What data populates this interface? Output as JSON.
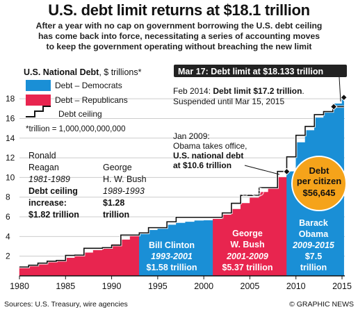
{
  "header": {
    "title": "U.S. debt limit returns at $18.1 trillion",
    "subtitle_lines": [
      "After a year with no cap on government borrowing the U.S. debt ceiling",
      "has come back into force, necessitating a series of accounting moves",
      "to keep the government operating without breaching the new limit"
    ]
  },
  "chart_title": {
    "main": "U.S. National Debt",
    "unit": ", $ trillions*"
  },
  "legend": {
    "democrats": "Debt – Democrats",
    "republicans": "Debt – Republicans",
    "ceiling": "Debt ceiling",
    "footnote": "*trillion = 1,000,000,000,000"
  },
  "colors": {
    "democrats": "#1a8fd6",
    "republicans": "#e8254f",
    "ceiling": "#111111",
    "gridline": "#cccccc",
    "citizen_badge": "#f5a31a",
    "callout_bg": "#222222"
  },
  "callouts": {
    "mar17": "Mar 17: Debt limit at $18.133 trillion",
    "feb2014_prefix": "Feb 2014: ",
    "feb2014_bold": "Debt limit $17.2 trillion",
    "feb2014_suffix": ".",
    "feb2014_line2": "Suspended until Mar 15, 2015",
    "jan2009_line1": "Jan 2009:",
    "jan2009_line2": "Obama takes office,",
    "jan2009_bold1": "U.S. national debt",
    "jan2009_bold2": "at $10.6 trillion"
  },
  "presidents": [
    {
      "name_lines": [
        "Ronald",
        "Reagan"
      ],
      "years": "1981-1989",
      "increase_lines": [
        "Debt ceiling",
        "increase:",
        "$1.82 trillion"
      ]
    },
    {
      "name_lines": [
        "George",
        "H. W. Bush"
      ],
      "years": "1989-1993",
      "increase_lines": [
        "$1.28",
        "trillion"
      ]
    },
    {
      "name_lines": [
        "Bill Clinton"
      ],
      "years": "1993-2001",
      "increase_lines": [
        "$1.58 trillion"
      ]
    },
    {
      "name_lines": [
        "George",
        "W. Bush"
      ],
      "years": "2001-2009",
      "increase_lines": [
        "$5.37 trillion"
      ]
    },
    {
      "name_lines": [
        "Barack",
        "Obama"
      ],
      "years": "2009-2015",
      "increase_lines": [
        "$7.5",
        "trillion"
      ]
    }
  ],
  "citizen_badge": {
    "line1": "Debt",
    "line2": "per citizen",
    "value": "$56,645"
  },
  "watermark": "GRAPHIC NEWS",
  "footer": {
    "sources": "Sources: U.S. Treasury, wire agencies",
    "credit": "© GRAPHIC NEWS"
  },
  "chart_data": {
    "type": "area",
    "xlim": [
      1980,
      2015.3
    ],
    "ylim": [
      0,
      19
    ],
    "x_ticks": [
      1980,
      1985,
      1990,
      1995,
      2000,
      2005,
      2010,
      2015
    ],
    "y_ticks": [
      2,
      4,
      6,
      8,
      10,
      12,
      14,
      16,
      18
    ],
    "series": [
      {
        "name": "Debt – Republicans",
        "party": "republicans",
        "x": [
          1980.0,
          1981.0,
          1982.0,
          1983.0,
          1984.0,
          1985.0,
          1986.0,
          1987.0,
          1988.0,
          1989.0,
          1990.0,
          1991.0,
          1992.0,
          1993.0
        ],
        "values": [
          0.9,
          1.0,
          1.14,
          1.37,
          1.57,
          1.82,
          2.13,
          2.35,
          2.6,
          2.86,
          3.23,
          3.67,
          4.06,
          4.35
        ]
      },
      {
        "name": "Debt – Democrats",
        "party": "democrats",
        "x": [
          1993.0,
          1994.0,
          1995.0,
          1996.0,
          1997.0,
          1998.0,
          1999.0,
          2000.0,
          2001.0
        ],
        "values": [
          4.35,
          4.64,
          4.92,
          5.18,
          5.37,
          5.48,
          5.61,
          5.63,
          5.77
        ]
      },
      {
        "name": "Debt – Republicans",
        "party": "republicans",
        "x": [
          2001.0,
          2002.0,
          2003.0,
          2004.0,
          2005.0,
          2006.0,
          2007.0,
          2008.0,
          2009.0
        ],
        "values": [
          5.77,
          6.2,
          6.78,
          7.38,
          7.93,
          8.51,
          9.01,
          10.02,
          10.6
        ]
      },
      {
        "name": "Debt – Democrats",
        "party": "democrats",
        "x": [
          2009.0,
          2010.0,
          2011.0,
          2012.0,
          2013.0,
          2014.0,
          2015.0,
          2015.2
        ],
        "values": [
          10.6,
          13.56,
          14.79,
          16.07,
          16.74,
          17.5,
          18.1,
          18.1
        ]
      }
    ],
    "ceiling": {
      "name": "Debt ceiling",
      "x": [
        1980.0,
        1981.0,
        1982.0,
        1983.0,
        1984.0,
        1985.0,
        1986.0,
        1987.0,
        1988.0,
        1989.0,
        1990.0,
        1991.0,
        1992.0,
        1993.0,
        1994.0,
        1995.0,
        1996.0,
        1997.0,
        1998.0,
        1999.0,
        2000.0,
        2001.0,
        2002.0,
        2003.0,
        2004.0,
        2005.0,
        2006.0,
        2007.0,
        2008.0,
        2009.0,
        2010.0,
        2011.0,
        2012.0,
        2013.0,
        2014.0
      ],
      "values": [
        0.9,
        1.08,
        1.29,
        1.49,
        1.57,
        2.08,
        2.11,
        2.8,
        2.8,
        2.87,
        3.12,
        4.15,
        4.15,
        4.37,
        4.9,
        4.9,
        5.5,
        5.95,
        5.95,
        5.95,
        5.95,
        5.95,
        6.4,
        7.38,
        8.18,
        8.18,
        8.97,
        8.97,
        10.62,
        12.1,
        14.29,
        15.19,
        16.39,
        16.7,
        17.2
      ]
    },
    "markers": [
      {
        "x": 2009.0,
        "y": 10.6
      },
      {
        "x": 2014.1,
        "y": 17.2
      },
      {
        "x": 2015.2,
        "y": 18.133
      }
    ]
  }
}
